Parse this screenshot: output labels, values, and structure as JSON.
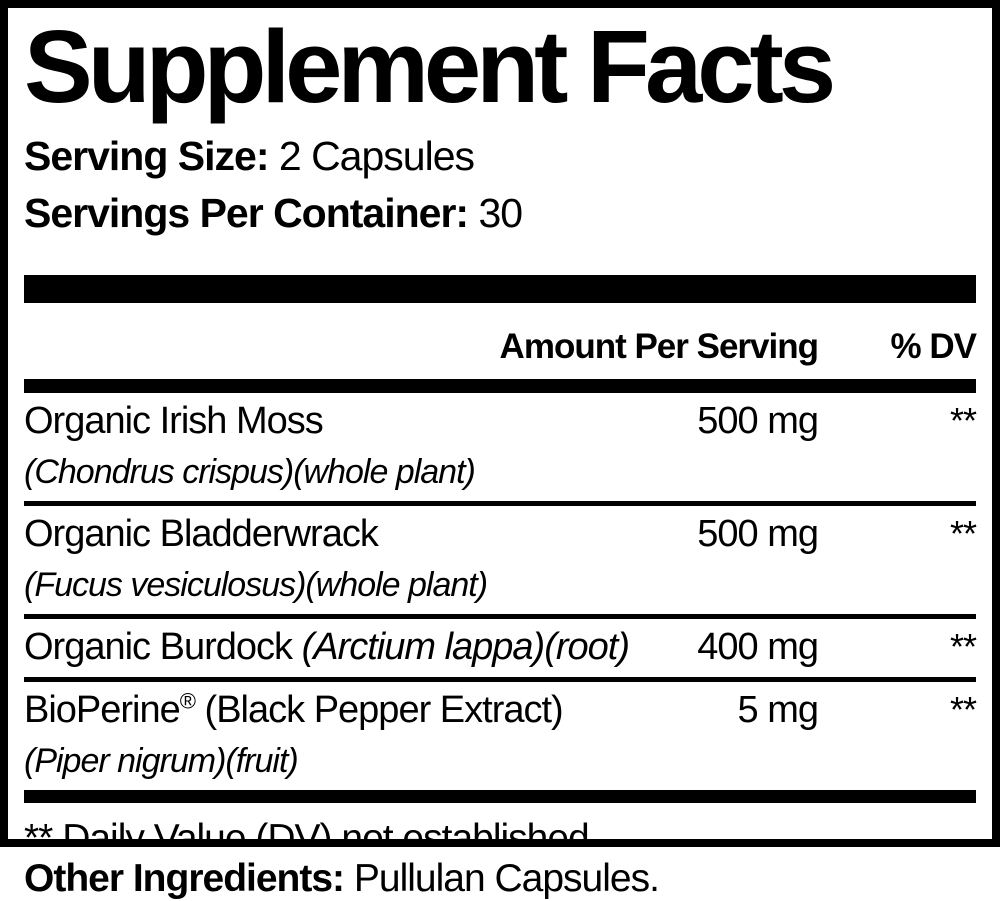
{
  "label": {
    "title": "Supplement Facts",
    "serving": {
      "size_label": "Serving Size:",
      "size_value": " 2 Capsules",
      "per_container_label": "Servings Per Container:",
      "per_container_value": " 30"
    },
    "table": {
      "header": {
        "amount": "Amount Per Serving",
        "dv": "% DV"
      },
      "rows": [
        {
          "name": "Organic Irish Moss",
          "sub": "(Chondrus crispus)(whole plant)",
          "amount": "500 mg",
          "dv": "**"
        },
        {
          "name": "Organic Bladderwrack",
          "sub": "(Fucus vesiculosus)(whole plant)",
          "amount": "500 mg",
          "dv": "**"
        },
        {
          "name": "Organic Burdock",
          "detail_italic": " (Arctium lappa)(root)",
          "amount": "400 mg",
          "dv": "**"
        },
        {
          "name": "BioPerine",
          "mark": "®",
          "detail": " (Black Pepper Extract)",
          "sub": "(Piper nigrum)(fruit)",
          "amount": "5 mg",
          "dv": "**"
        }
      ],
      "footnote": "** Daily Value (DV) not established"
    },
    "other_ingredients": {
      "label": "Other Ingredients:",
      "value": " Pullulan Capsules."
    },
    "colors": {
      "text": "#000000",
      "background": "#ffffff"
    }
  }
}
